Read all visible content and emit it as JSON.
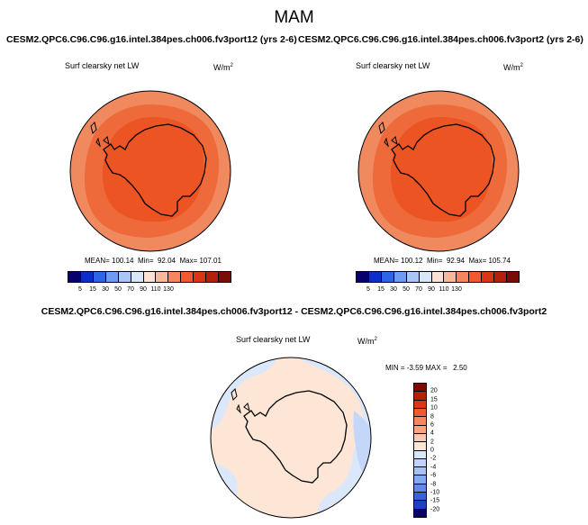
{
  "figure": {
    "season": "MAM"
  },
  "panel_left": {
    "title": "CESM2.QPC6.C96.C96.g16.intel.384pes.ch006.fv3port12 (yrs 2-6)",
    "variable": "Surf clearsky net LW",
    "unit": "W/m",
    "unit_exp": "2",
    "stats": {
      "mean_label": "MEAN=",
      "mean": "100.14",
      "min_label": "Min=",
      "min": "92.04",
      "max_label": "Max=",
      "max": "107.01"
    }
  },
  "panel_right": {
    "title": "CESM2.QPC6.C96.C96.g16.intel.384pes.ch006.fv3port2 (yrs 2-6)",
    "variable": "Surf clearsky net LW",
    "unit": "W/m",
    "unit_exp": "2",
    "stats": {
      "mean_label": "MEAN=",
      "mean": "100.12",
      "min_label": "Min=",
      "min": "92.94",
      "max_label": "Max=",
      "max": "105.74"
    }
  },
  "panel_diff": {
    "title": "CESM2.QPC6.C96.C96.g16.intel.384pes.ch006.fv3port12 - CESM2.QPC6.C96.C96.g16.intel.384pes.ch006.fv3port2",
    "variable": "Surf clearsky net LW",
    "unit": "W/m",
    "unit_exp": "2",
    "stats": {
      "min_label": "MIN =",
      "min": "-3.59",
      "max_label": "MAX =",
      "max": "2.50"
    }
  },
  "colorbar_main": {
    "labels": [
      "5",
      "15",
      "30",
      "50",
      "70",
      "90",
      "110",
      "130"
    ],
    "colors": [
      "#08006b",
      "#0a2ec8",
      "#2f64e6",
      "#6e9cf0",
      "#a9c6f6",
      "#d8e6fb",
      "#fbe2d2",
      "#f9b89a",
      "#f5865f",
      "#ef5a30",
      "#dc3515",
      "#b5200b",
      "#7a0c06"
    ]
  },
  "colorbar_diff": {
    "labels": [
      "20",
      "15",
      "10",
      "8",
      "6",
      "4",
      "2",
      "0",
      "-2",
      "-4",
      "-6",
      "-8",
      "-10",
      "-15",
      "-20"
    ],
    "colors": [
      "#7a0c06",
      "#b5200b",
      "#dc3515",
      "#ef5a30",
      "#f5865f",
      "#f9a47c",
      "#fbc9ad",
      "#fde6d6",
      "#d8e6fb",
      "#bfd4f8",
      "#a4c2f4",
      "#85a9ef",
      "#5f8ae8",
      "#3663dc",
      "#1e3fbf",
      "#08006b"
    ]
  },
  "map_colors": {
    "outer": "#f08a5e",
    "mid": "#ef6a3a",
    "inner": "#ec5424",
    "diff_warm": "#fde6d6",
    "diff_cool": "#dbe7fb",
    "diff_cooler": "#c4d7f8"
  }
}
